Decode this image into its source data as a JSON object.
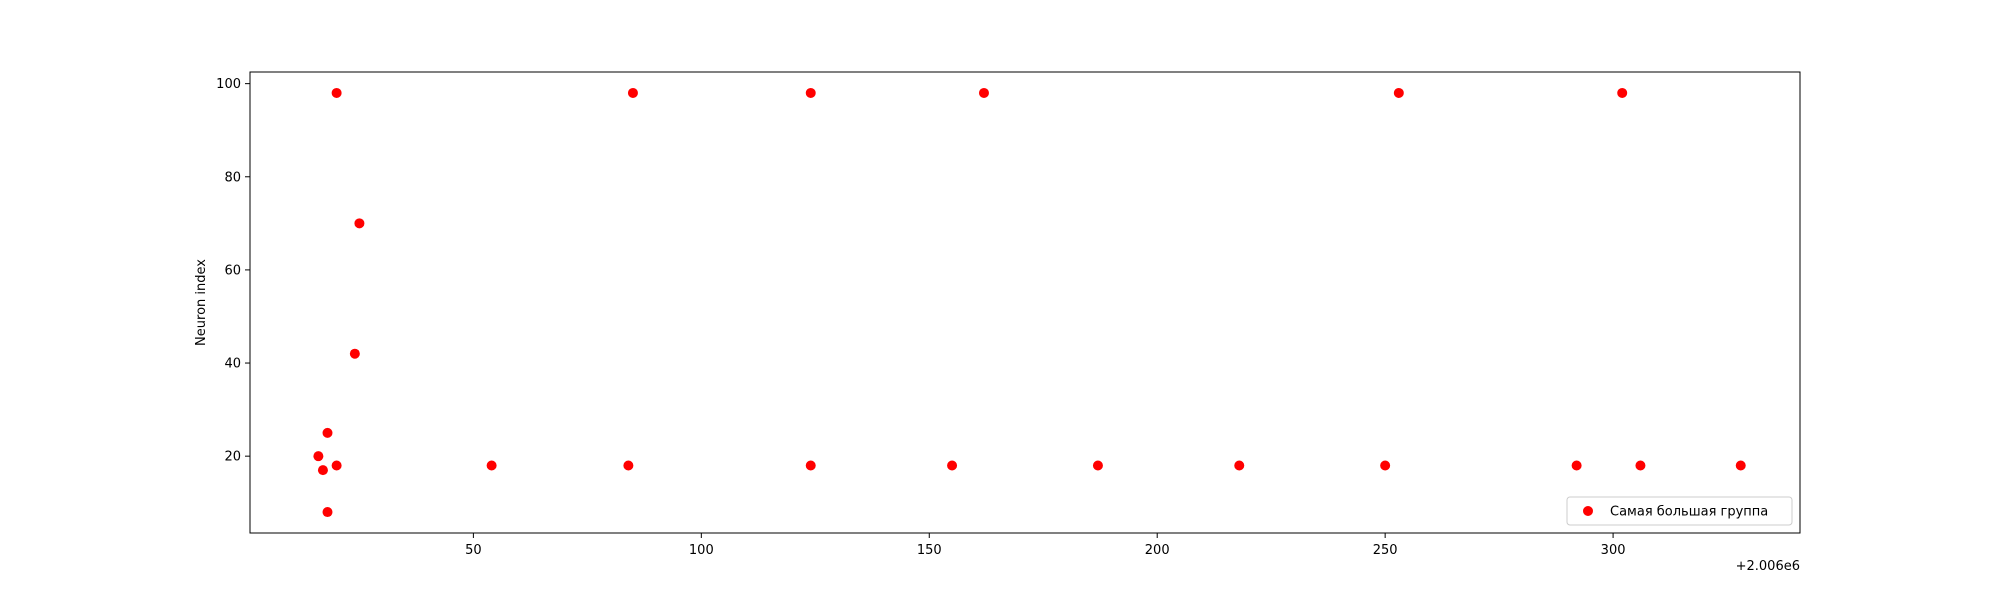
{
  "chart_data": {
    "type": "scatter",
    "title": "",
    "xlabel": "",
    "ylabel": "Neuron index",
    "x_offset_label": "+2.006e6",
    "xlim": [
      2006001,
      2006341
    ],
    "ylim": [
      3.5,
      102.5
    ],
    "xticks": [
      50,
      100,
      150,
      200,
      250,
      300
    ],
    "yticks": [
      20,
      40,
      60,
      80,
      100
    ],
    "grid": false,
    "legend_position": "lower-right",
    "series": [
      {
        "name": "Самая большая группа",
        "color": "#ff0000",
        "points": [
          {
            "x": 2006016,
            "y": 20
          },
          {
            "x": 2006017,
            "y": 17
          },
          {
            "x": 2006018,
            "y": 8
          },
          {
            "x": 2006018,
            "y": 25
          },
          {
            "x": 2006020,
            "y": 98
          },
          {
            "x": 2006020,
            "y": 18
          },
          {
            "x": 2006024,
            "y": 42
          },
          {
            "x": 2006025,
            "y": 70
          },
          {
            "x": 2006054,
            "y": 18
          },
          {
            "x": 2006084,
            "y": 18
          },
          {
            "x": 2006085,
            "y": 98
          },
          {
            "x": 2006124,
            "y": 98
          },
          {
            "x": 2006124,
            "y": 18
          },
          {
            "x": 2006155,
            "y": 18
          },
          {
            "x": 2006162,
            "y": 98
          },
          {
            "x": 2006187,
            "y": 18
          },
          {
            "x": 2006218,
            "y": 18
          },
          {
            "x": 2006250,
            "y": 18
          },
          {
            "x": 2006253,
            "y": 98
          },
          {
            "x": 2006292,
            "y": 18
          },
          {
            "x": 2006302,
            "y": 98
          },
          {
            "x": 2006306,
            "y": 18
          },
          {
            "x": 2006328,
            "y": 18
          }
        ]
      }
    ]
  }
}
